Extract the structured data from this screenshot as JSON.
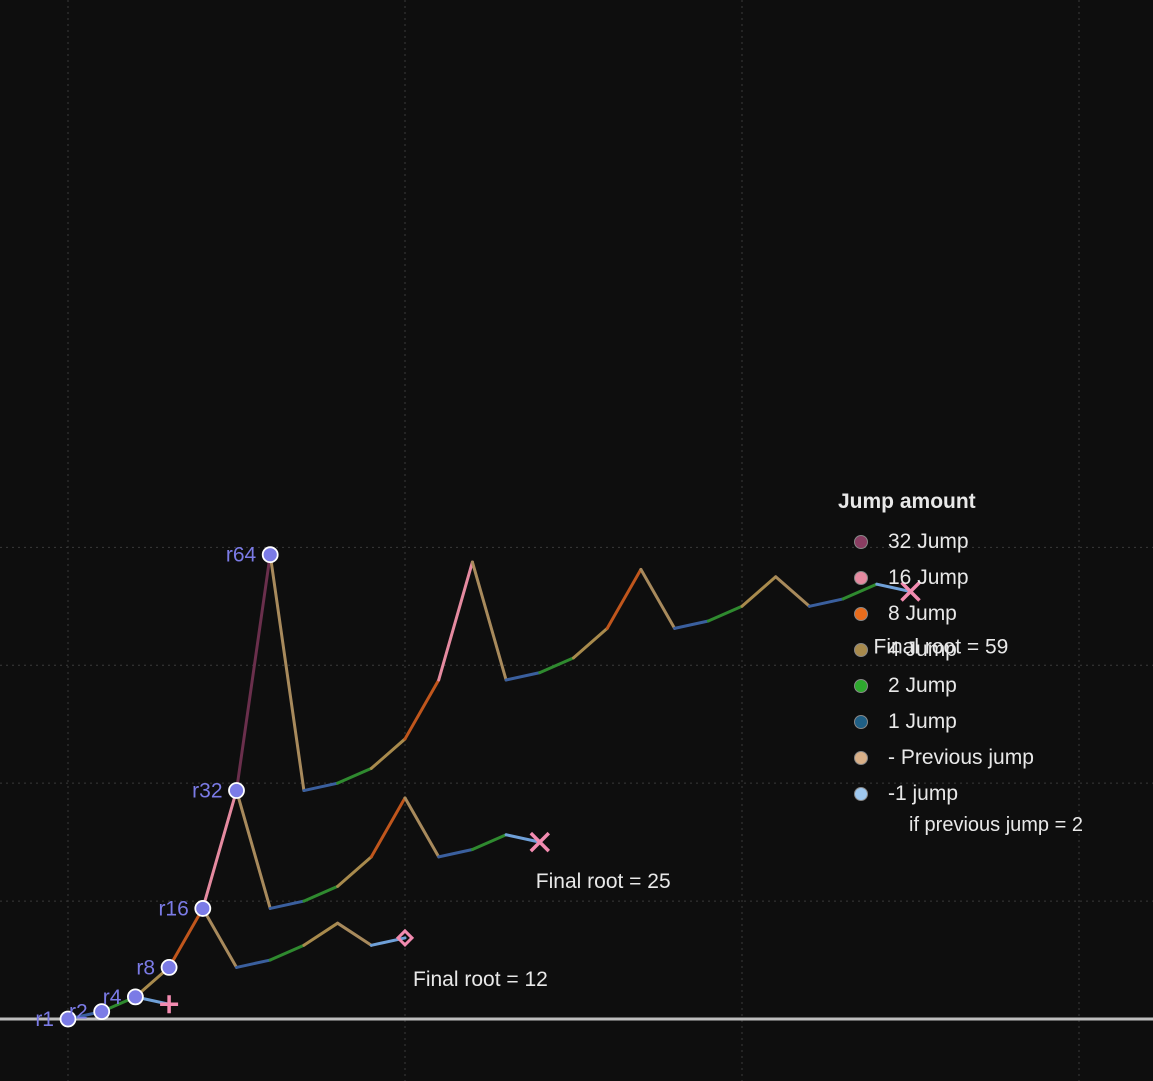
{
  "chart_data": {
    "type": "line",
    "title": "",
    "xlabel": "",
    "ylabel": "",
    "ylim": [
      0,
      64
    ],
    "grid": true,
    "legend": {
      "placement": "right",
      "title": "Jump amount",
      "note": "if previous jump = 2",
      "entries": [
        {
          "label": "32 Jump",
          "color": "#8a3d62"
        },
        {
          "label": "16 Jump",
          "color": "#e58aa0"
        },
        {
          "label": "8 Jump",
          "color": "#e86c1c"
        },
        {
          "label": "4 Jump",
          "color": "#a88a4c"
        },
        {
          "label": "2 Jump",
          "color": "#2ea82e"
        },
        {
          "label": "1 Jump",
          "color": "#1f5f85"
        },
        {
          "label": "- Previous jump",
          "color": "#d9b088"
        },
        {
          "label": "-1 jump",
          "color": "#9fc8ef"
        }
      ]
    },
    "roots": [
      {
        "label": "r1",
        "x": 1,
        "y": 1
      },
      {
        "label": "r2",
        "x": 2,
        "y": 2
      },
      {
        "label": "r4",
        "x": 3,
        "y": 4
      },
      {
        "label": "r8",
        "x": 4,
        "y": 8
      },
      {
        "label": "r16",
        "x": 5,
        "y": 16
      },
      {
        "label": "r32",
        "x": 6,
        "y": 32
      },
      {
        "label": "r64",
        "x": 7,
        "y": 64
      }
    ],
    "base_segments": [
      {
        "from": [
          1,
          1
        ],
        "to": [
          2,
          2
        ],
        "jump": "1 Jump"
      },
      {
        "from": [
          2,
          2
        ],
        "to": [
          3,
          4
        ],
        "jump": "2 Jump"
      },
      {
        "from": [
          3,
          4
        ],
        "to": [
          4,
          8
        ],
        "jump": "4 Jump"
      },
      {
        "from": [
          4,
          8
        ],
        "to": [
          5,
          16
        ],
        "jump": "8 Jump"
      },
      {
        "from": [
          5,
          16
        ],
        "to": [
          6,
          32
        ],
        "jump": "16 Jump"
      },
      {
        "from": [
          6,
          32
        ],
        "to": [
          7,
          64
        ],
        "jump": "32 Jump"
      }
    ],
    "searches": [
      {
        "points": [
          [
            3,
            4
          ],
          [
            4,
            3
          ]
        ],
        "jumps": [
          "-1 jump"
        ],
        "marker": "plus"
      },
      {
        "points": [
          [
            5,
            16
          ],
          [
            6,
            8
          ],
          [
            7,
            9
          ],
          [
            8,
            11
          ],
          [
            9,
            14
          ],
          [
            10,
            11
          ],
          [
            11,
            12
          ]
        ],
        "jumps": [
          "- Previous jump",
          "1 Jump",
          "2 Jump",
          "4 Jump",
          "- Previous jump",
          "-1 jump"
        ],
        "marker": "diamond",
        "final_label": "Final root = 12"
      },
      {
        "points": [
          [
            6,
            32
          ],
          [
            7,
            16
          ],
          [
            8,
            17
          ],
          [
            9,
            19
          ],
          [
            10,
            23
          ],
          [
            11,
            31
          ],
          [
            12,
            23
          ],
          [
            13,
            24
          ],
          [
            14,
            26
          ],
          [
            15,
            25
          ]
        ],
        "jumps": [
          "- Previous jump",
          "1 Jump",
          "2 Jump",
          "4 Jump",
          "8 Jump",
          "- Previous jump",
          "1 Jump",
          "2 Jump",
          "-1 jump"
        ],
        "marker": "x",
        "final_label": "Final root = 25"
      },
      {
        "points": [
          [
            7,
            64
          ],
          [
            8,
            32
          ],
          [
            9,
            33
          ],
          [
            10,
            35
          ],
          [
            11,
            39
          ],
          [
            12,
            47
          ],
          [
            13,
            63
          ],
          [
            14,
            47
          ],
          [
            15,
            48
          ],
          [
            16,
            50
          ],
          [
            17,
            54
          ],
          [
            18,
            62
          ],
          [
            19,
            54
          ],
          [
            20,
            55
          ],
          [
            21,
            57
          ],
          [
            22,
            61
          ],
          [
            23,
            57
          ],
          [
            24,
            58
          ],
          [
            25,
            60
          ],
          [
            26,
            59
          ]
        ],
        "jumps": [
          "- Previous jump",
          "1 Jump",
          "2 Jump",
          "4 Jump",
          "8 Jump",
          "16 Jump",
          "- Previous jump",
          "1 Jump",
          "2 Jump",
          "4 Jump",
          "8 Jump",
          "- Previous jump",
          "1 Jump",
          "2 Jump",
          "4 Jump",
          "- Previous jump",
          "1 Jump",
          "2 Jump",
          "-1 jump"
        ],
        "marker": "x",
        "final_label": "Final root = 59"
      }
    ]
  }
}
